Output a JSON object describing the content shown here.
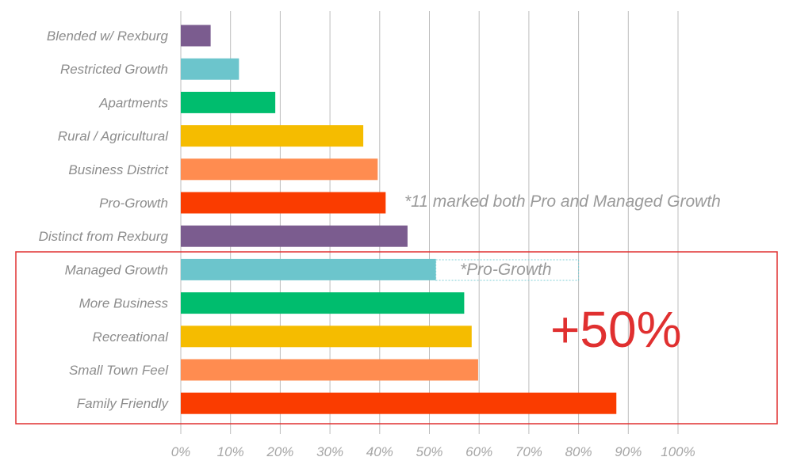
{
  "chart_data": {
    "type": "bar",
    "orientation": "horizontal",
    "categories": [
      "Blended w/ Rexburg",
      "Restricted Growth",
      "Apartments",
      "Rural / Agricultural",
      "Business District",
      "Pro-Growth",
      "Distinct from Rexburg",
      "Managed Growth",
      "More Business",
      "Recreational",
      "Small Town Feel",
      "Family Friendly"
    ],
    "values": [
      6,
      11.7,
      19,
      36.7,
      39.6,
      41.2,
      45.6,
      51.3,
      57,
      58.5,
      59.8,
      87.6
    ],
    "colors": [
      "#7b5c8f",
      "#6cc5cc",
      "#00bd6e",
      "#f5bc00",
      "#ff8c50",
      "#fa3c00",
      "#7b5c8f",
      "#6cc5cc",
      "#00bd6e",
      "#f5bc00",
      "#ff8c50",
      "#fa3c00"
    ],
    "xticks": [
      "0%",
      "10%",
      "20%",
      "30%",
      "40%",
      "50%",
      "60%",
      "70%",
      "80%",
      "90%",
      "100%"
    ],
    "xlim": [
      0,
      100
    ],
    "grid": true,
    "annotations": {
      "note": "*11 marked both Pro and Managed Growth",
      "pro_growth_overlay_label": "*Pro-Growth",
      "pro_growth_overlay_range": [
        51.3,
        80
      ],
      "highlight_text": "+50%",
      "highlight_color": "#e03030"
    }
  }
}
